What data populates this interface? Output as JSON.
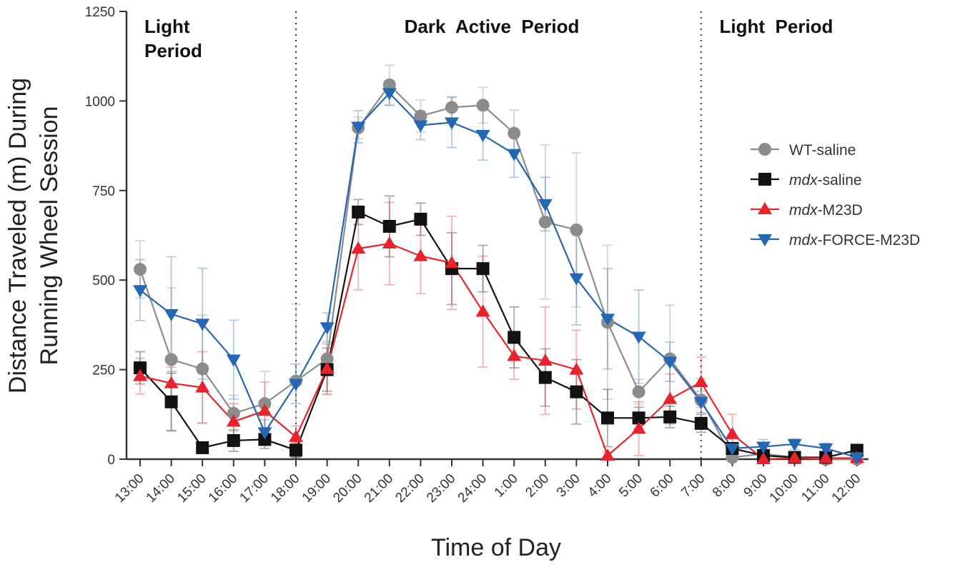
{
  "chart_data": {
    "type": "line",
    "title": "",
    "xlabel": "Time of Day",
    "ylabel": [
      "Distance Traveled (m) During",
      "Running Wheel Session"
    ],
    "ylim": [
      0,
      1250
    ],
    "yticks": [
      "0",
      "250",
      "500",
      "750",
      "1000",
      "1250"
    ],
    "categories": [
      "13:00",
      "14:00",
      "15:00",
      "16:00",
      "17:00",
      "18:00",
      "19:00",
      "20:00",
      "21:00",
      "22:00",
      "23:00",
      "24:00",
      "1:00",
      "2:00",
      "3:00",
      "4:00",
      "5:00",
      "6:00",
      "7:00",
      "8:00",
      "9:00",
      "10:00",
      "11:00",
      "12:00"
    ],
    "periods": [
      {
        "label_lines": [
          "Light",
          "Period"
        ]
      },
      {
        "label_lines": [
          "Dark  Active  Period"
        ]
      },
      {
        "label_lines": [
          "Light  Period"
        ]
      }
    ],
    "divider_labels": [
      "18:00",
      "7:00"
    ],
    "series": [
      {
        "name_italic": "",
        "name_rest": "WT-saline",
        "color": "#8c8c8c",
        "marker": "circle",
        "values": [
          530,
          278,
          252,
          128,
          155,
          218,
          280,
          925,
          1045,
          958,
          982,
          988,
          910,
          662,
          640,
          382,
          188,
          280,
          165,
          5,
          15,
          5,
          0,
          0
        ],
        "errors": [
          80,
          200,
          150,
          50,
          90,
          215,
          100,
          30,
          55,
          45,
          30,
          50,
          65,
          215,
          215,
          215,
          35,
          150,
          60,
          5,
          10,
          5,
          3,
          3
        ]
      },
      {
        "name_italic": "mdx",
        "name_rest": "-saline",
        "color": "#111111",
        "marker": "square",
        "values": [
          255,
          160,
          32,
          52,
          55,
          25,
          250,
          690,
          650,
          670,
          532,
          532,
          340,
          228,
          188,
          115,
          115,
          118,
          100,
          30,
          10,
          5,
          5,
          25
        ],
        "errors": [
          45,
          80,
          15,
          30,
          25,
          20,
          60,
          35,
          85,
          45,
          100,
          65,
          85,
          80,
          90,
          80,
          30,
          30,
          25,
          15,
          8,
          5,
          5,
          10
        ]
      },
      {
        "name_italic": "mdx",
        "name_rest": "-M23D",
        "color": "#e8232b",
        "marker": "triangle-up",
        "values": [
          232,
          212,
          200,
          105,
          135,
          62,
          252,
          588,
          602,
          567,
          548,
          412,
          288,
          275,
          250,
          10,
          85,
          168,
          215,
          70,
          0,
          3,
          3,
          3
        ],
        "errors": [
          50,
          45,
          100,
          50,
          80,
          30,
          70,
          115,
          115,
          105,
          130,
          155,
          65,
          150,
          110,
          10,
          75,
          70,
          70,
          55,
          5,
          3,
          3,
          3
        ]
      },
      {
        "name_italic": "mdx",
        "name_rest": "-FORCE-M23D",
        "color": "#2266b5",
        "marker": "triangle-down",
        "values": [
          472,
          405,
          378,
          278,
          75,
          210,
          368,
          928,
          1022,
          932,
          940,
          905,
          852,
          712,
          505,
          392,
          342,
          272,
          160,
          30,
          35,
          42,
          30,
          5
        ],
        "errors": [
          85,
          160,
          155,
          110,
          35,
          55,
          40,
          45,
          35,
          40,
          70,
          70,
          65,
          75,
          130,
          140,
          130,
          55,
          30,
          15,
          20,
          15,
          15,
          5
        ]
      }
    ]
  }
}
